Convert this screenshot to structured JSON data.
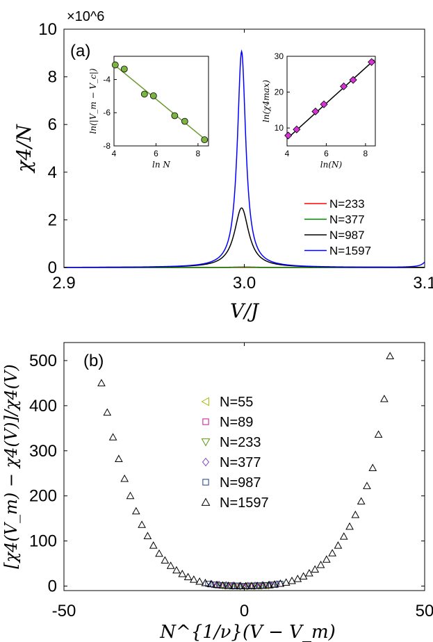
{
  "chart_data": [
    {
      "panel": "(a)",
      "type": "line",
      "xlabel": "V/J",
      "ylabel": "χ4/N",
      "exponent_label": "×10^6",
      "xlim": [
        2.9,
        3.1
      ],
      "ylim": [
        0,
        10
      ],
      "x_ticks": [
        "2.9",
        "3.0",
        "3.1"
      ],
      "y_ticks": [
        "0",
        "2",
        "4",
        "6",
        "8",
        "10"
      ],
      "legend_position": "lower-right",
      "series": [
        {
          "name": "N=233",
          "color": "#ff0000",
          "peak_x": 3.0,
          "peak_y": 0.003,
          "width": 0.01
        },
        {
          "name": "N=377",
          "color": "#008000",
          "peak_x": 3.0,
          "peak_y": 0.02,
          "width": 0.008
        },
        {
          "name": "N=987",
          "color": "#000000",
          "peak_x": 2.9985,
          "peak_y": 2.5,
          "width": 0.0048
        },
        {
          "name": "N=1597",
          "color": "#0000ff",
          "peak_x": 2.9985,
          "peak_y": 9.07,
          "width": 0.0028
        }
      ],
      "insets": [
        {
          "type": "scatter+fit",
          "xlabel": "ln N",
          "ylabel": "ln(|V_m − V_c|)",
          "xlim": [
            4,
            8.5
          ],
          "ylim": [
            -8,
            -2.6
          ],
          "x_ticks": [
            "4",
            "6",
            "8"
          ],
          "y_ticks": [
            "-4",
            "-6",
            "-8"
          ],
          "marker_color": "#7cb342",
          "line_color": "#6a9a2e",
          "points": {
            "x": [
              4.06,
              4.49,
              5.45,
              5.88,
              6.89,
              7.37,
              8.31
            ],
            "y": [
              -3.12,
              -3.37,
              -4.88,
              -4.98,
              -6.18,
              -6.52,
              -7.63
            ]
          },
          "fit": {
            "x": [
              4.0,
              8.45
            ],
            "y": [
              -3.1,
              -7.72
            ]
          }
        },
        {
          "type": "scatter+fit",
          "xlabel": "ln(N)",
          "ylabel": "ln(χ4max)",
          "xlim": [
            4,
            8.5
          ],
          "ylim": [
            5,
            30
          ],
          "x_ticks": [
            "4",
            "6",
            "8"
          ],
          "y_ticks": [
            "10",
            "20",
            "30"
          ],
          "marker_color": "#d633d6",
          "line_color": "#000000",
          "points": {
            "x": [
              4.06,
              4.49,
              5.45,
              5.88,
              6.89,
              7.37,
              8.31
            ],
            "y": [
              7.9,
              9.6,
              14.6,
              16.6,
              21.6,
              23.4,
              28.4
            ]
          },
          "fit": {
            "x": [
              4.0,
              8.45
            ],
            "y": [
              7.0,
              29.0
            ]
          }
        }
      ]
    },
    {
      "panel": "(b)",
      "type": "scatter",
      "xlabel": "N^{1/ν}(V − V_m)",
      "ylabel": "[χ4(V_m) − χ4(V)]/χ4(V)",
      "xlim": [
        -50,
        50
      ],
      "ylim": [
        -10,
        540
      ],
      "x_ticks": [
        "-50",
        "0",
        "50"
      ],
      "y_ticks": [
        "0",
        "100",
        "200",
        "300",
        "400",
        "500"
      ],
      "legend_position": "center",
      "series": [
        {
          "name": "N=55",
          "marker": "triangle-left",
          "color": "#a8b800",
          "points": [
            [
              -6,
              1
            ],
            [
              -4,
              0.5
            ],
            [
              -2,
              0
            ],
            [
              0,
              0
            ],
            [
              2,
              0
            ],
            [
              4,
              0.5
            ],
            [
              6,
              1
            ]
          ]
        },
        {
          "name": "N=89",
          "marker": "square",
          "color": "#c0159c",
          "points": [
            [
              -7,
              1.5
            ],
            [
              -5,
              1
            ],
            [
              -3,
              0.5
            ],
            [
              -1,
              0
            ],
            [
              1,
              0
            ],
            [
              3,
              0.5
            ],
            [
              5,
              1
            ],
            [
              7,
              1.5
            ]
          ]
        },
        {
          "name": "N=233",
          "marker": "triangle-down",
          "color": "#5a9a10",
          "points": [
            [
              -8,
              3
            ],
            [
              -6,
              2
            ],
            [
              -4,
              1
            ],
            [
              -2,
              0.5
            ],
            [
              0,
              0
            ],
            [
              2,
              0.5
            ],
            [
              4,
              1
            ],
            [
              6,
              2
            ],
            [
              8,
              3
            ]
          ]
        },
        {
          "name": "N=377",
          "marker": "diamond",
          "color": "#7b3fb8",
          "points": [
            [
              -9,
              4
            ],
            [
              -7,
              3
            ],
            [
              -5,
              2
            ],
            [
              -3,
              1
            ],
            [
              -1,
              0.5
            ],
            [
              1,
              0.5
            ],
            [
              3,
              1
            ],
            [
              5,
              2
            ],
            [
              7,
              3
            ],
            [
              9,
              4
            ]
          ]
        },
        {
          "name": "N=987",
          "marker": "square",
          "color": "#1c3f7a",
          "points": [
            [
              -10,
              5
            ],
            [
              -8,
              3
            ],
            [
              -6,
              2
            ],
            [
              -4,
              1.5
            ],
            [
              -2,
              1
            ],
            [
              0,
              0
            ],
            [
              2,
              1
            ],
            [
              4,
              1.5
            ],
            [
              6,
              2
            ],
            [
              8,
              3
            ],
            [
              10,
              5
            ]
          ]
        },
        {
          "name": "N=1597",
          "marker": "triangle-up",
          "color": "#000000",
          "points": [
            [
              -39.6,
              450
            ],
            [
              -38,
              385
            ],
            [
              -36.4,
              330
            ],
            [
              -34.8,
              282
            ],
            [
              -33.2,
              238
            ],
            [
              -31.6,
              200
            ],
            [
              -30,
              166
            ],
            [
              -28.4,
              136
            ],
            [
              -26.8,
              111
            ],
            [
              -25.2,
              90
            ],
            [
              -23.6,
              72
            ],
            [
              -22,
              57
            ],
            [
              -20.4,
              45
            ],
            [
              -18.8,
              35
            ],
            [
              -17.2,
              27
            ],
            [
              -15.6,
              20
            ],
            [
              -14,
              14.5
            ],
            [
              -12.4,
              10
            ],
            [
              -10.8,
              7
            ],
            [
              -9.2,
              4.5
            ],
            [
              -7.6,
              2.8
            ],
            [
              -6,
              1.6
            ],
            [
              -4.4,
              0.8
            ],
            [
              -2.8,
              0.3
            ],
            [
              -1.2,
              0
            ],
            [
              0.4,
              0
            ],
            [
              2,
              0.2
            ],
            [
              3.6,
              0.6
            ],
            [
              5.2,
              1.2
            ],
            [
              6.8,
              2.2
            ],
            [
              8.4,
              3.6
            ],
            [
              10,
              5.5
            ],
            [
              11.6,
              8
            ],
            [
              13.2,
              11.5
            ],
            [
              14.8,
              16
            ],
            [
              16.4,
              21.5
            ],
            [
              18,
              28.5
            ],
            [
              19.6,
              37
            ],
            [
              21.2,
              47
            ],
            [
              22.8,
              59
            ],
            [
              24.4,
              73
            ],
            [
              26,
              90
            ],
            [
              27.6,
              110
            ],
            [
              29.2,
              132
            ],
            [
              30.8,
              158
            ],
            [
              32.4,
              188
            ],
            [
              34,
              222
            ],
            [
              35.6,
              262
            ],
            [
              37.2,
              336
            ],
            [
              38.8,
              415
            ],
            [
              40.4,
              510
            ]
          ]
        }
      ]
    }
  ]
}
